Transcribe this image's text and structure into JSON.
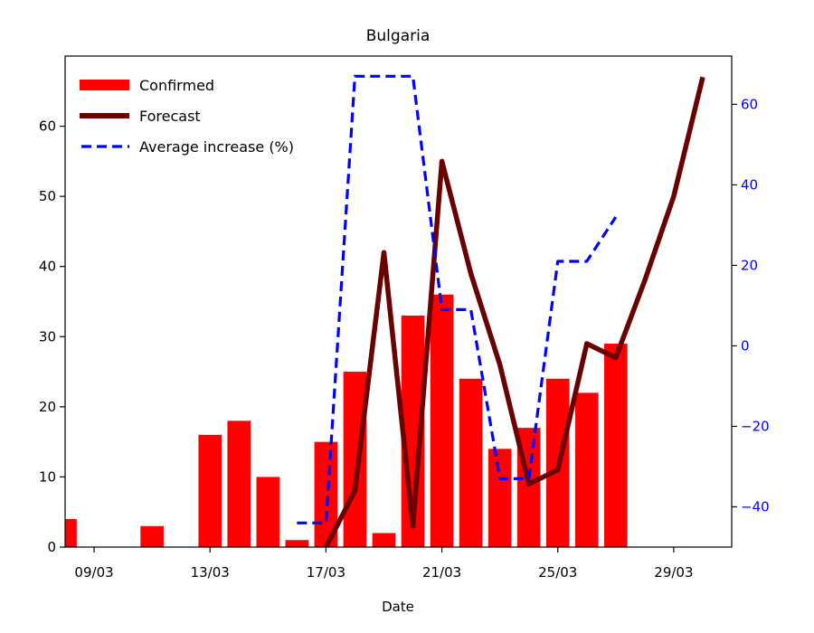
{
  "chart_data": {
    "type": "bar",
    "title": "Bulgaria",
    "xlabel": "Date",
    "ylabel": "",
    "ylim": [
      0,
      70
    ],
    "y2lim": [
      -50,
      72
    ],
    "x_range": [
      "2020-03-08",
      "2020-03-31"
    ],
    "x_ticks": [
      "09/03",
      "13/03",
      "17/03",
      "21/03",
      "25/03",
      "29/03"
    ],
    "y_ticks": [
      0,
      10,
      20,
      30,
      40,
      50,
      60
    ],
    "y2_ticks": [
      -40,
      -20,
      0,
      20,
      40,
      60
    ],
    "grid": false,
    "legend_position": "top-left",
    "series": [
      {
        "name": "Confirmed",
        "kind": "bar",
        "axis": "left",
        "color": "#ff0000",
        "x": [
          "2020-03-08",
          "2020-03-09",
          "2020-03-10",
          "2020-03-11",
          "2020-03-12",
          "2020-03-13",
          "2020-03-14",
          "2020-03-15",
          "2020-03-16",
          "2020-03-17",
          "2020-03-18",
          "2020-03-19",
          "2020-03-20",
          "2020-03-21",
          "2020-03-22",
          "2020-03-23",
          "2020-03-24",
          "2020-03-25",
          "2020-03-26",
          "2020-03-27"
        ],
        "values": [
          4,
          0,
          0,
          3,
          0,
          16,
          18,
          10,
          1,
          15,
          25,
          2,
          33,
          36,
          24,
          14,
          17,
          24,
          22,
          29
        ]
      },
      {
        "name": "Forecast",
        "kind": "line",
        "axis": "left",
        "color": "#6b0000",
        "x": [
          "2020-03-17",
          "2020-03-18",
          "2020-03-19",
          "2020-03-20",
          "2020-03-21",
          "2020-03-22",
          "2020-03-23",
          "2020-03-24",
          "2020-03-25",
          "2020-03-26",
          "2020-03-27",
          "2020-03-28",
          "2020-03-29",
          "2020-03-30"
        ],
        "values": [
          0,
          8,
          42,
          3,
          55,
          39,
          26,
          9,
          11,
          29,
          27,
          38,
          50,
          67
        ]
      },
      {
        "name": "Average increase (%)",
        "kind": "line",
        "axis": "right",
        "style": "dashed",
        "color": "#0000ff",
        "x": [
          "2020-03-16",
          "2020-03-17",
          "2020-03-18",
          "2020-03-19",
          "2020-03-20",
          "2020-03-21",
          "2020-03-22",
          "2020-03-23",
          "2020-03-24",
          "2020-03-25",
          "2020-03-26",
          "2020-03-27"
        ],
        "values": [
          -44,
          -44,
          67,
          67,
          67,
          9,
          9,
          -33,
          -33,
          21,
          21,
          32
        ]
      }
    ]
  }
}
